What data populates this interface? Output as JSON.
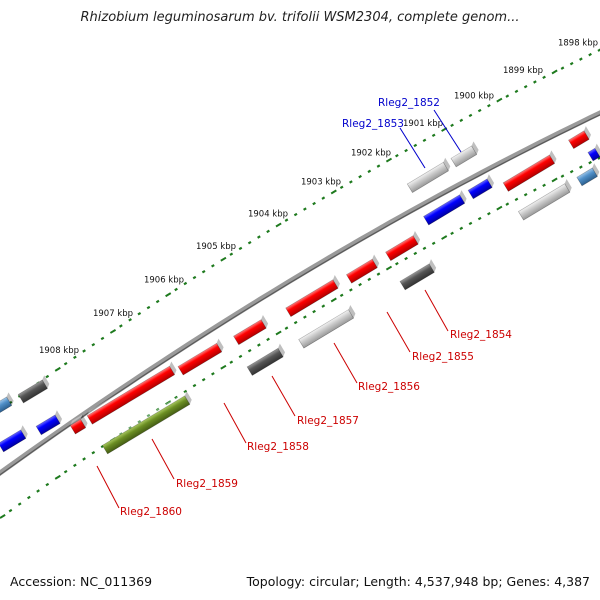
{
  "title": "Rhizobium leguminosarum bv. trifolii WSM2304, complete genom...",
  "footer": {
    "accession": "Accession: NC_011369",
    "topology": "Topology: circular; Length: 4,537,948 bp; Genes: 4,387"
  },
  "colors": {
    "backbone": "#8a8a8a",
    "tick": "#1e7a1e",
    "plus_label": "#0000cc",
    "minus_label": "#cc0000",
    "red_gene": "#ff0000",
    "blue_gene": "#0000ff",
    "steel_gene": "#4f8fc8",
    "dark_gene": "#555555",
    "light_gene": "#c8c8c8",
    "olive_gene": "#6b8e23"
  },
  "kbp_labels": [
    "1898 kbp",
    "1899 kbp",
    "1900 kbp",
    "1901 kbp",
    "1902 kbp",
    "1903 kbp",
    "1904 kbp",
    "1905 kbp",
    "1906 kbp",
    "1907 kbp",
    "1908 kbp"
  ],
  "gene_labels_plus": [
    "Rleg2_1852",
    "Rleg2_1853"
  ],
  "gene_labels_minus": [
    "Rleg2_1854",
    "Rleg2_1855",
    "Rleg2_1856",
    "Rleg2_1857",
    "Rleg2_1858",
    "Rleg2_1859",
    "Rleg2_1860"
  ]
}
